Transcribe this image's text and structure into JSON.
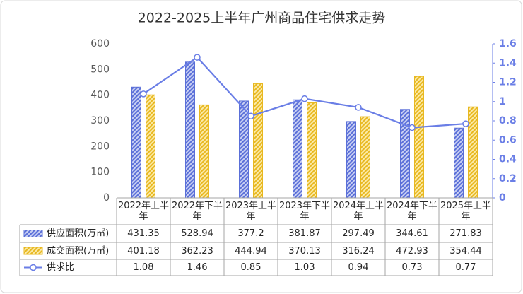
{
  "chart_data": {
    "type": "bar",
    "title": "2022-2025上半年广州商品住宅供求走势",
    "categories": [
      "2022年上半年",
      "2022年下半年",
      "2023年上半年",
      "2023年下半年",
      "2024年上半年",
      "2024年下半年",
      "2025年上半年"
    ],
    "series": [
      {
        "name": "供应面积(万㎡)",
        "color": "#5a6fd8",
        "values": [
          431.35,
          528.94,
          377.2,
          381.87,
          297.49,
          344.61,
          271.83
        ]
      },
      {
        "name": "成交面积(万㎡)",
        "color": "#e8b820",
        "values": [
          401.18,
          362.23,
          444.94,
          370.13,
          316.24,
          472.93,
          354.44
        ]
      },
      {
        "name": "供求比",
        "color": "#6a7ee6",
        "axis": "y2",
        "values": [
          1.08,
          1.46,
          0.85,
          1.03,
          0.94,
          0.73,
          0.77
        ]
      }
    ],
    "ylim": [
      0,
      600
    ],
    "yticks": [
      0,
      100,
      200,
      300,
      400,
      500,
      600
    ],
    "y2lim": [
      0,
      1.6
    ],
    "y2ticks": [
      0,
      0.2,
      0.4,
      0.6,
      0.8,
      1,
      1.2,
      1.4,
      1.6
    ],
    "data_table": true
  }
}
